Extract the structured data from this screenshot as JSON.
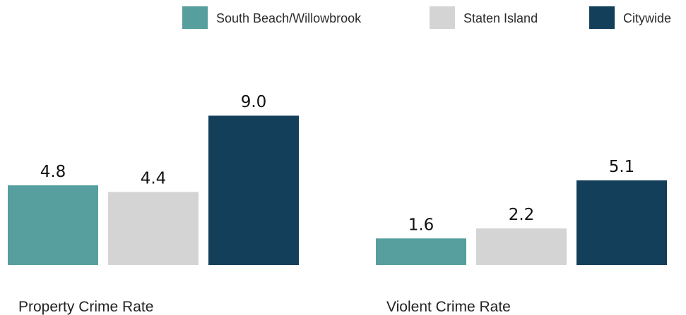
{
  "chart_data": {
    "type": "bar",
    "categories": [
      "Property Crime Rate",
      "Violent Crime Rate"
    ],
    "series": [
      {
        "name": "South Beach/Willowbrook",
        "color": "#579f9e",
        "values": [
          4.8,
          1.6
        ]
      },
      {
        "name": "Staten Island",
        "color": "#d4d4d4",
        "values": [
          4.4,
          2.2
        ]
      },
      {
        "name": "Citywide",
        "color": "#133f5a",
        "values": [
          9.0,
          5.1
        ]
      }
    ],
    "value_labels": [
      [
        "4.8",
        "1.6"
      ],
      [
        "4.4",
        "2.2"
      ],
      [
        "9.0",
        "5.1"
      ]
    ],
    "legend_position": "top-right",
    "grid": false,
    "ylim": [
      0,
      9.0
    ]
  }
}
